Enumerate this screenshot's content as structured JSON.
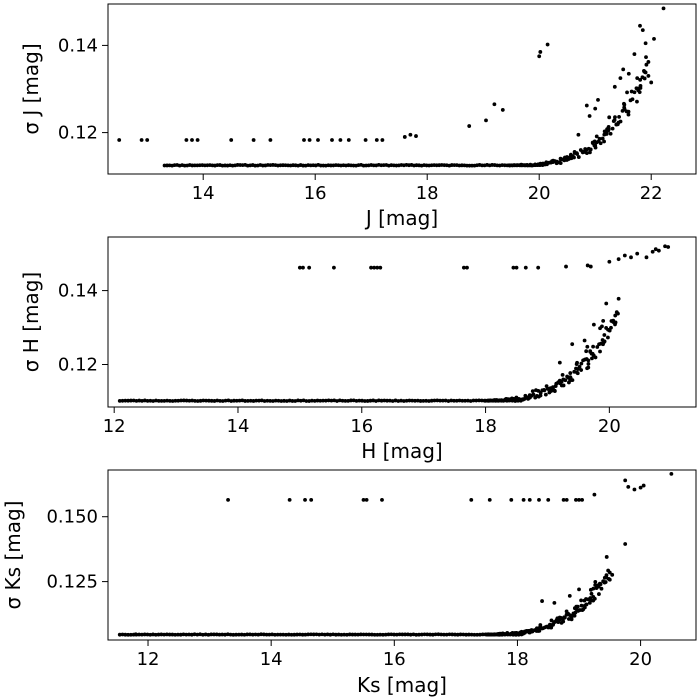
{
  "chart_data": [
    {
      "type": "scatter",
      "xlabel": "J [mag]",
      "ylabel": "σ J [mag]",
      "xlim": [
        12.3,
        22.8
      ],
      "ylim": [
        0.1105,
        0.1495
      ],
      "xticks": [
        14,
        16,
        18,
        20,
        22
      ],
      "yticks": [
        0.12,
        0.14
      ],
      "ytick_labels": [
        "0.12",
        "0.14"
      ],
      "floor": 0.1125,
      "grid": false,
      "curve": {
        "x_start": 19.5,
        "x_end": 21.95,
        "y_end": 0.134,
        "power": 3.2,
        "n": 70,
        "spread": 0.0045
      },
      "points": [
        [
          12.5,
          0.1183
        ],
        [
          12.9,
          0.1183
        ],
        [
          13.0,
          0.1183
        ],
        [
          13.7,
          0.1183
        ],
        [
          13.8,
          0.1183
        ],
        [
          13.9,
          0.1183
        ],
        [
          14.5,
          0.1183
        ],
        [
          14.9,
          0.1183
        ],
        [
          15.2,
          0.1183
        ],
        [
          15.8,
          0.1183
        ],
        [
          15.9,
          0.1183
        ],
        [
          16.05,
          0.1183
        ],
        [
          16.3,
          0.1183
        ],
        [
          16.45,
          0.1183
        ],
        [
          16.6,
          0.1183
        ],
        [
          16.9,
          0.1183
        ],
        [
          17.1,
          0.1183
        ],
        [
          17.2,
          0.1183
        ],
        [
          17.6,
          0.119
        ],
        [
          17.7,
          0.1195
        ],
        [
          17.8,
          0.1192
        ],
        [
          18.75,
          0.1215
        ],
        [
          19.05,
          0.1228
        ],
        [
          19.2,
          0.1265
        ],
        [
          19.35,
          0.1252
        ],
        [
          20.0,
          0.1375
        ],
        [
          20.02,
          0.1385
        ],
        [
          20.15,
          0.1402
        ],
        [
          20.85,
          0.1262
        ],
        [
          21.05,
          0.1275
        ],
        [
          21.25,
          0.1235
        ],
        [
          21.35,
          0.1305
        ],
        [
          21.45,
          0.1325
        ],
        [
          21.5,
          0.1345
        ],
        [
          21.7,
          0.138
        ],
        [
          21.75,
          0.1325
        ],
        [
          21.8,
          0.1445
        ],
        [
          21.85,
          0.1435
        ],
        [
          21.9,
          0.1405
        ],
        [
          21.95,
          0.133
        ],
        [
          22.0,
          0.1315
        ],
        [
          22.05,
          0.1415
        ],
        [
          22.22,
          0.1485
        ],
        [
          21.9,
          0.1338
        ],
        [
          21.6,
          0.1335
        ],
        [
          21.0,
          0.1255
        ],
        [
          20.9,
          0.1238
        ],
        [
          20.7,
          0.1195
        ]
      ]
    },
    {
      "type": "scatter",
      "xlabel": "H [mag]",
      "ylabel": "σ H [mag]",
      "xlim": [
        11.9,
        21.4
      ],
      "ylim": [
        0.1085,
        0.1545
      ],
      "xticks": [
        12,
        14,
        16,
        18,
        20
      ],
      "yticks": [
        0.12,
        0.14
      ],
      "ytick_labels": [
        "0.12",
        "0.14"
      ],
      "floor": 0.1102,
      "grid": false,
      "curve": {
        "x_start": 18.0,
        "x_end": 20.12,
        "y_end": 0.132,
        "power": 3.0,
        "n": 75,
        "spread": 0.0055
      },
      "points": [
        [
          15.0,
          0.1462
        ],
        [
          15.05,
          0.1462
        ],
        [
          15.15,
          0.1462
        ],
        [
          15.55,
          0.1462
        ],
        [
          16.15,
          0.1462
        ],
        [
          16.2,
          0.1462
        ],
        [
          16.25,
          0.1462
        ],
        [
          16.3,
          0.1462
        ],
        [
          17.65,
          0.1462
        ],
        [
          17.7,
          0.1462
        ],
        [
          18.45,
          0.1462
        ],
        [
          18.5,
          0.1462
        ],
        [
          18.65,
          0.1462
        ],
        [
          18.85,
          0.1462
        ],
        [
          19.3,
          0.1465
        ],
        [
          19.65,
          0.1468
        ],
        [
          19.7,
          0.1465
        ],
        [
          20.0,
          0.1478
        ],
        [
          20.15,
          0.1485
        ],
        [
          20.25,
          0.1495
        ],
        [
          20.35,
          0.149
        ],
        [
          20.45,
          0.15
        ],
        [
          20.6,
          0.149
        ],
        [
          20.7,
          0.1505
        ],
        [
          20.75,
          0.1512
        ],
        [
          20.8,
          0.1508
        ],
        [
          20.9,
          0.152
        ],
        [
          20.95,
          0.1518
        ],
        [
          19.95,
          0.1365
        ],
        [
          20.15,
          0.1378
        ],
        [
          19.85,
          0.1298
        ],
        [
          19.9,
          0.1318
        ],
        [
          19.75,
          0.1308
        ],
        [
          19.6,
          0.1265
        ],
        [
          19.4,
          0.1255
        ],
        [
          19.2,
          0.1205
        ]
      ]
    },
    {
      "type": "scatter",
      "xlabel": "Ks [mag]",
      "ylabel": "σ Ks [mag]",
      "xlim": [
        11.35,
        20.9
      ],
      "ylim": [
        0.1025,
        0.168
      ],
      "xticks": [
        12,
        14,
        16,
        18,
        20
      ],
      "yticks": [
        0.125,
        0.15
      ],
      "ytick_labels": [
        "0.125",
        "0.150"
      ],
      "floor": 0.1046,
      "grid": false,
      "curve": {
        "x_start": 17.5,
        "x_end": 19.5,
        "y_end": 0.1265,
        "power": 3.0,
        "n": 75,
        "spread": 0.0055
      },
      "points": [
        [
          13.3,
          0.1565
        ],
        [
          14.3,
          0.1565
        ],
        [
          14.55,
          0.1565
        ],
        [
          14.65,
          0.1565
        ],
        [
          15.5,
          0.1565
        ],
        [
          15.55,
          0.1565
        ],
        [
          15.8,
          0.1565
        ],
        [
          17.25,
          0.1565
        ],
        [
          17.55,
          0.1565
        ],
        [
          17.9,
          0.1565
        ],
        [
          18.1,
          0.1565
        ],
        [
          18.2,
          0.1565
        ],
        [
          18.35,
          0.1565
        ],
        [
          18.5,
          0.1565
        ],
        [
          18.75,
          0.1565
        ],
        [
          18.8,
          0.1565
        ],
        [
          18.95,
          0.1565
        ],
        [
          19.0,
          0.1565
        ],
        [
          19.05,
          0.1565
        ],
        [
          19.25,
          0.1585
        ],
        [
          19.75,
          0.164
        ],
        [
          19.8,
          0.1615
        ],
        [
          19.9,
          0.1605
        ],
        [
          20.0,
          0.1612
        ],
        [
          20.05,
          0.162
        ],
        [
          20.5,
          0.1665
        ],
        [
          19.75,
          0.1395
        ],
        [
          19.45,
          0.1345
        ],
        [
          19.5,
          0.1285
        ],
        [
          19.35,
          0.124
        ],
        [
          19.0,
          0.122
        ],
        [
          18.85,
          0.1195
        ],
        [
          18.4,
          0.1175
        ],
        [
          18.6,
          0.1168
        ],
        [
          11.8,
          0.1047
        ]
      ]
    }
  ]
}
